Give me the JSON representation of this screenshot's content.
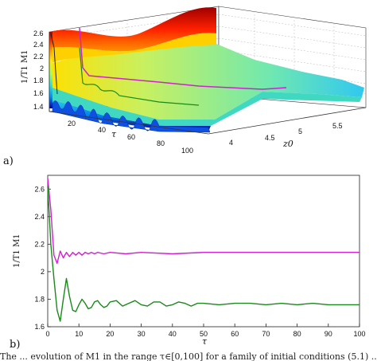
{
  "panel_a": {
    "label": "a)",
    "zlabel": "1/T1 M1",
    "xlabel": "τ",
    "ylabel": "z0",
    "ztick_labels": [
      "1.4",
      "1.6",
      "1.8",
      "2",
      "2.2",
      "2.4",
      "2.6"
    ],
    "xtick_labels": [
      "20",
      "40",
      "60",
      "80",
      "100"
    ],
    "ytick_labels": [
      "4",
      "4.5",
      "5",
      "5.5"
    ]
  },
  "panel_b": {
    "label": "b)",
    "ylabel": "1/T1 M1",
    "xlabel": "τ"
  },
  "caption_fragment": "The ... evolution of M1 in the range τ∈[0,100] for a family of initial conditions (5.1) ...",
  "chart_data": [
    {
      "type": "area",
      "description_of_axes": "3D surface of M1/T1 over (τ, z0)",
      "xlim": [
        0,
        100
      ],
      "ylim": [
        3.5,
        6
      ],
      "zlim": [
        1.35,
        2.7
      ],
      "xticks": [
        20,
        40,
        60,
        80,
        100
      ],
      "yticks": [
        4,
        4.5,
        5,
        5.5
      ],
      "zticks": [
        1.4,
        1.6,
        1.8,
        2,
        2.2,
        2.4,
        2.6
      ],
      "colormap": "jet",
      "highlighted_curve_color": "#d020d0",
      "grid": true
    },
    {
      "type": "line",
      "xlabel": "τ",
      "ylabel": "1/T1 M1",
      "xlim": [
        0,
        100
      ],
      "ylim": [
        1.6,
        2.7
      ],
      "xticks": [
        0,
        10,
        20,
        30,
        40,
        50,
        60,
        70,
        80,
        90,
        100
      ],
      "yticks": [
        1.6,
        1.8,
        2,
        2.2,
        2.4,
        2.6
      ],
      "series": [
        {
          "color": "#d020d0",
          "x": [
            0,
            1,
            2,
            3,
            4,
            5,
            6,
            7,
            8,
            9,
            10,
            11,
            12,
            13,
            14,
            15,
            16,
            18,
            20,
            25,
            30,
            40,
            50,
            60,
            70,
            80,
            90,
            100
          ],
          "y": [
            2.68,
            2.45,
            2.12,
            2.06,
            2.15,
            2.1,
            2.14,
            2.11,
            2.14,
            2.12,
            2.14,
            2.12,
            2.14,
            2.13,
            2.14,
            2.13,
            2.14,
            2.13,
            2.14,
            2.13,
            2.14,
            2.13,
            2.14,
            2.14,
            2.14,
            2.14,
            2.14,
            2.14
          ]
        },
        {
          "color": "#1a8a1a",
          "x": [
            0,
            1,
            2,
            3,
            4,
            5,
            6,
            7,
            8,
            9,
            10,
            11,
            12,
            13,
            14,
            15,
            16,
            17,
            18,
            19,
            20,
            22,
            24,
            26,
            28,
            30,
            32,
            34,
            36,
            38,
            40,
            42,
            44,
            46,
            48,
            50,
            55,
            60,
            65,
            70,
            75,
            80,
            85,
            90,
            95,
            100
          ],
          "y": [
            2.62,
            2.2,
            1.95,
            1.72,
            1.64,
            1.8,
            1.95,
            1.82,
            1.72,
            1.71,
            1.76,
            1.8,
            1.77,
            1.73,
            1.74,
            1.78,
            1.79,
            1.76,
            1.74,
            1.75,
            1.78,
            1.79,
            1.75,
            1.77,
            1.79,
            1.76,
            1.75,
            1.78,
            1.78,
            1.75,
            1.76,
            1.78,
            1.77,
            1.75,
            1.77,
            1.77,
            1.76,
            1.77,
            1.77,
            1.76,
            1.77,
            1.76,
            1.77,
            1.76,
            1.76,
            1.76
          ]
        }
      ]
    }
  ]
}
